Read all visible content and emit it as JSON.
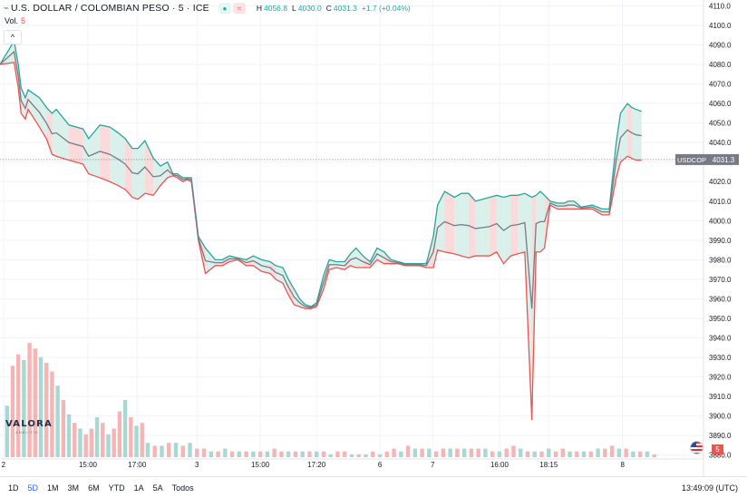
{
  "header": {
    "symbol_title": "U.S. DOLLAR / COLOMBIAN PESO · 5 · ICE",
    "open_flag": "●",
    "compare_flag": "≈",
    "ohlc": {
      "h_label": "H",
      "h": "4056.8",
      "l_label": "L",
      "l": "4030.0",
      "c_label": "C",
      "c": "4031.3",
      "change": "+1.7 (+0.04%)"
    }
  },
  "volume_legend": {
    "label": "Vol.",
    "value": "5"
  },
  "collapse_button": "^",
  "logo": {
    "text": "VALORA",
    "subtext": "ANALITIK"
  },
  "price_badge": {
    "symbol": "USDCOP",
    "value": "4031.3"
  },
  "volume_badge": "5",
  "footer": {
    "ranges": [
      "1D",
      "5D",
      "1M",
      "3M",
      "6M",
      "YTD",
      "1A",
      "5A",
      "Todos"
    ],
    "active_range": "5D",
    "clock": "13:49:09 (UTC)"
  },
  "colors": {
    "up": "#26a69a",
    "down": "#ef5350",
    "mid": "#787b86",
    "up_fill": "#d4ede7",
    "down_fill": "#f9d3d4",
    "vol_up": "#a8d8d2",
    "vol_down": "#f5b5b4"
  },
  "chart_data": {
    "type": "area",
    "y_axis": {
      "ticks": [
        3880,
        3890,
        3900,
        3910,
        3920,
        3930,
        3940,
        3950,
        3960,
        3970,
        3980,
        3990,
        4000,
        4010,
        4020,
        4030,
        4040,
        4050,
        4060,
        4070,
        4080,
        4090,
        4100,
        4110
      ],
      "range": [
        3878,
        4113
      ]
    },
    "x_axis": {
      "labels": [
        "2",
        "15:00",
        "17:00",
        "3",
        "15:00",
        "17:20",
        "6",
        "7",
        "16:00",
        "18:15",
        "8"
      ],
      "positions": [
        0.5,
        12.5,
        19.5,
        28,
        37,
        45,
        54,
        61.5,
        71,
        78,
        88.5
      ],
      "range": [
        0,
        100
      ]
    },
    "last_price": 4031.3,
    "series": [
      {
        "name": "USDCOP",
        "x": [
          0,
          2,
          2.6,
          3,
          3.6,
          4,
          5.6,
          6.6,
          7.4,
          8,
          9.8,
          11.8,
          12.6,
          14.2,
          15.6,
          16.8,
          17.8,
          18.8,
          19.6,
          20.6,
          21.8,
          22.8,
          23.8,
          24.6,
          25.2,
          26,
          26.6,
          27.2,
          28.2,
          29.2,
          30.6,
          31.6,
          32.6,
          33.8,
          35,
          36,
          37.2,
          38.4,
          39.2,
          40.2,
          41,
          41.8,
          42.6,
          43.4,
          44.2,
          45,
          46,
          46.8,
          47.8,
          49,
          49.8,
          50.6,
          51.6,
          52.6,
          53.6,
          54.6,
          55.6,
          56.6,
          57.6,
          58.6,
          59.6,
          60.6,
          61.6,
          62.2,
          63.2,
          64.6,
          65.6,
          66.6,
          67.6,
          68.6,
          69.6,
          70.6,
          71.6,
          72.6,
          73.6,
          74.6,
          75.6,
          76.2,
          76.8,
          77.4,
          78.2,
          79.2,
          80.2,
          80.8,
          81.6,
          82.6,
          84.2,
          85.6,
          86.6,
          87.6,
          88.2,
          89.2,
          89.8,
          90.4,
          91.2
        ],
        "high": [
          4080,
          4092,
          4080,
          4068,
          4063,
          4067,
          4063,
          4058,
          4055,
          4057,
          4049,
          4047,
          4042,
          4049,
          4048,
          4045,
          4042,
          4037,
          4037,
          4041,
          4032,
          4028,
          4030,
          4024,
          4024,
          4022,
          4022,
          4022,
          3992,
          3986,
          3980,
          3980,
          3982,
          3981,
          3980,
          3982,
          3980,
          3979,
          3977,
          3976,
          3970,
          3965,
          3960,
          3957,
          3956,
          3958,
          3972,
          3980,
          3979,
          3979,
          3983,
          3986,
          3982,
          3979,
          3986,
          3984,
          3980,
          3979,
          3978,
          3978,
          3978,
          3978,
          3992,
          4008,
          4015,
          4012,
          4014,
          4014,
          4010,
          4011,
          4012,
          4013,
          4012,
          4013,
          4013,
          4014,
          4012,
          4013,
          4015,
          4013,
          4010,
          4009,
          4009,
          4010,
          4010,
          4007,
          4008,
          4006,
          4006,
          4040,
          4055,
          4060,
          4058,
          4057,
          4056
        ],
        "low": [
          4080,
          4081,
          4068,
          4055,
          4052,
          4057,
          4048,
          4042,
          4034,
          4033,
          4031,
          4029,
          4024,
          4022,
          4020,
          4018,
          4016,
          4012,
          4011,
          4014,
          4013,
          4018,
          4022,
          4023,
          4022,
          4020,
          4021,
          4020,
          3990,
          3973,
          3977,
          3977,
          3979,
          3980,
          3977,
          3977,
          3974,
          3973,
          3970,
          3968,
          3962,
          3957,
          3956,
          3955,
          3955,
          3956,
          3965,
          3975,
          3976,
          3975,
          3977,
          3976,
          3976,
          3976,
          3980,
          3978,
          3978,
          3978,
          3977,
          3977,
          3977,
          3976,
          3976,
          3985,
          3984,
          3983,
          3982,
          3981,
          3982,
          3982,
          3982,
          3984,
          3978,
          3982,
          3983,
          3984,
          3898,
          3984,
          3984,
          3986,
          4008,
          4006,
          4006,
          4006,
          4006,
          4006,
          4006,
          4003,
          4003,
          4022,
          4030,
          4033,
          4032,
          4031,
          4031
        ]
      }
    ],
    "volume": {
      "x": [
        1,
        1.8,
        2.6,
        3.4,
        4.2,
        5,
        5.8,
        6.6,
        7.4,
        8.2,
        9,
        9.8,
        10.6,
        11.4,
        12.2,
        13,
        13.8,
        14.6,
        15.4,
        16.2,
        17,
        17.8,
        18.6,
        19.4,
        20.2,
        21,
        22,
        23,
        24,
        25,
        26,
        27,
        28,
        29,
        30,
        31,
        32,
        33,
        34,
        35,
        36,
        37,
        38,
        39,
        40,
        41,
        42,
        43,
        44,
        45,
        46,
        47,
        48,
        49,
        50,
        51,
        52,
        53,
        54,
        55,
        56,
        57,
        58,
        59,
        60,
        61,
        62,
        63,
        64,
        65,
        66,
        67,
        68,
        69,
        70,
        71,
        72,
        73,
        74,
        75,
        76,
        77,
        78,
        79,
        80,
        81,
        82,
        83,
        84,
        85,
        86,
        87,
        88,
        89,
        90,
        91,
        92,
        93
      ],
      "values": [
        18,
        32,
        36,
        34,
        40,
        38,
        35,
        33,
        30,
        25,
        20,
        15,
        12,
        10,
        8,
        10,
        14,
        12,
        8,
        10,
        16,
        20,
        14,
        11,
        12,
        5,
        4,
        4,
        5,
        5,
        4,
        5,
        3,
        3,
        2,
        2,
        3,
        2,
        2,
        2,
        2,
        2,
        2,
        3,
        2,
        2,
        2,
        2,
        2,
        2,
        2,
        1,
        2,
        2,
        1,
        1,
        1,
        2,
        1,
        2,
        3,
        2,
        4,
        3,
        3,
        3,
        2,
        3,
        3,
        3,
        3,
        3,
        3,
        3,
        2,
        2,
        3,
        4,
        3,
        2,
        2,
        2,
        3,
        2,
        3,
        2,
        2,
        2,
        2,
        3,
        3,
        4,
        3,
        3,
        2,
        2,
        2,
        1
      ],
      "up": [
        1,
        0,
        0,
        1,
        0,
        0,
        1,
        0,
        0,
        1,
        0,
        1,
        0,
        1,
        0,
        0,
        1,
        0,
        1,
        0,
        0,
        1,
        0,
        1,
        0,
        1,
        0,
        1,
        0,
        1,
        0,
        1,
        0,
        0,
        1,
        0,
        1,
        0,
        1,
        0,
        1,
        0,
        1,
        0,
        0,
        1,
        0,
        1,
        0,
        1,
        0,
        1,
        0,
        0,
        1,
        0,
        1,
        0,
        1,
        0,
        0,
        1,
        0,
        1,
        0,
        1,
        0,
        0,
        1,
        0,
        1,
        0,
        0,
        1,
        0,
        1,
        0,
        0,
        1,
        0,
        1,
        0,
        1,
        0,
        0,
        1,
        0,
        1,
        0,
        1,
        0,
        0,
        1,
        0,
        1,
        0,
        1,
        0
      ]
    }
  }
}
